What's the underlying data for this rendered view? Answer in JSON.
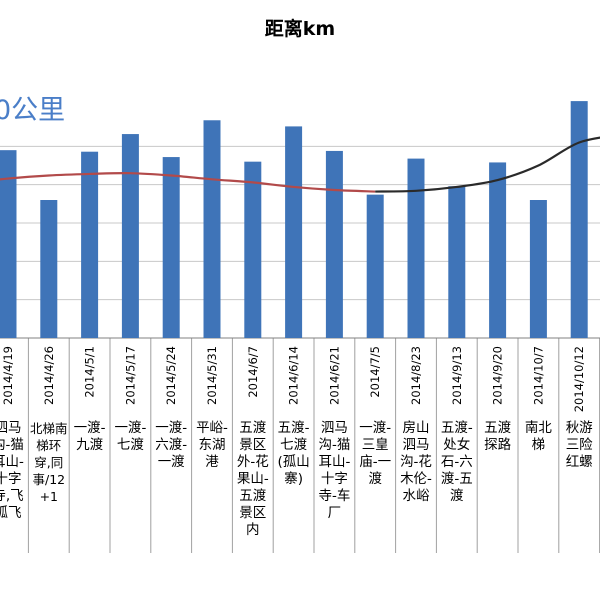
{
  "chart_data": {
    "type": "bar",
    "title": "距离km",
    "annotation": "0公里",
    "ylim": [
      0,
      300
    ],
    "grid": true,
    "colors": {
      "bar": "#3f74b8",
      "trend": "#b24a4a",
      "trend_dark": "#2a2a2a",
      "grid": "#c8c8c8"
    },
    "categories": [
      "2014/4/19",
      "2014/4/26",
      "2014/5/1",
      "2014/5/17",
      "2014/5/24",
      "2014/5/31",
      "2014/6/7",
      "2014/6/14",
      "2014/6/21",
      "2014/7/5",
      "2014/8/23",
      "2014/9/13",
      "2014/9/20",
      "2014/10/7",
      "2014/10/12"
    ],
    "values": [
      245,
      180,
      243,
      266,
      236,
      284,
      230,
      276,
      244,
      187,
      234,
      198,
      229,
      180,
      309
    ],
    "descriptions": [
      "泗马沟-猫耳山-十字寺,飞狐飞",
      "北梯南梯环穿,同事/12+1",
      "一渡-九渡",
      "一渡-七渡",
      "一渡-六渡-一渡",
      "平峪-东湖港",
      "五渡景区外-花果山-五渡景区内",
      "五渡-七渡(孤山寨)",
      "泗马沟-猫耳山-十字寺-车厂",
      "一渡-三皇庙-一渡",
      "房山泗马沟-花木伦-水峪",
      "五渡-处女石-六渡-五渡",
      "五渡探路",
      "南北梯",
      "秋游三险红螺"
    ],
    "trend": [
      [
        0,
        208
      ],
      [
        1,
        212
      ],
      [
        2,
        214
      ],
      [
        3,
        215
      ],
      [
        4,
        212
      ],
      [
        5,
        207
      ],
      [
        6,
        203
      ],
      [
        7,
        197
      ],
      [
        8,
        193
      ],
      [
        9,
        191
      ],
      [
        10,
        192
      ],
      [
        11,
        197
      ],
      [
        12,
        206
      ],
      [
        13,
        225
      ],
      [
        14,
        255
      ]
    ]
  }
}
